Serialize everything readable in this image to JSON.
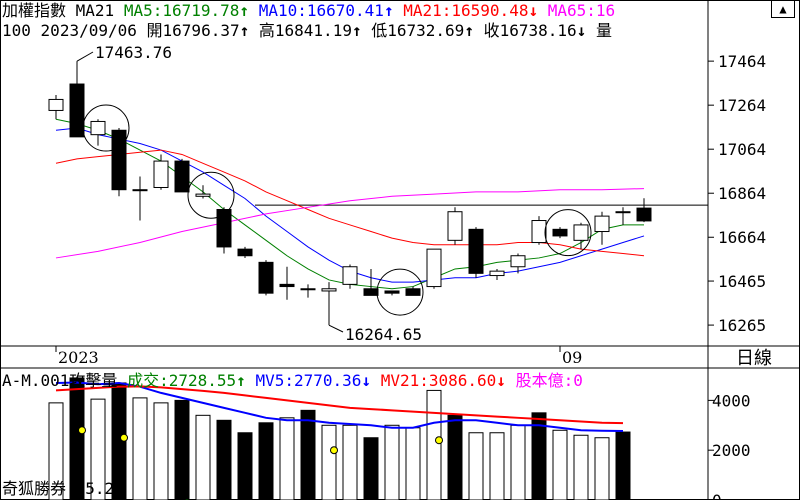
{
  "app": {
    "name": "奇狐勝券 v5.2",
    "period_button": "日線"
  },
  "header": {
    "index_name": "加權指數",
    "ma_label": "MA21",
    "ma5": {
      "label": "MA5:",
      "value": "16719.78",
      "arrow": "↑"
    },
    "ma10": {
      "label": "MA10:",
      "value": "16670.41",
      "arrow": "↑"
    },
    "ma21": {
      "label": "MA21:",
      "value": "16590.48",
      "arrow": "↓"
    },
    "ma65": {
      "label": "MA65:",
      "value": "16"
    },
    "scroll_icon": "up-arrow-icon",
    "info_prefix": "100",
    "date": "2023/09/06",
    "open": {
      "label": "開",
      "value": "16796.37",
      "arrow": "↑"
    },
    "high": {
      "label": "高",
      "value": "16841.19",
      "arrow": "↑"
    },
    "low": {
      "label": "低",
      "value": "16732.69",
      "arrow": "↑"
    },
    "close": {
      "label": "收",
      "value": "16738.16",
      "arrow": "↓"
    },
    "volume_label": "量"
  },
  "volume_header": {
    "prefix": "A-M.001攻擊量",
    "vol": {
      "label": "成交:",
      "value": "2728.55",
      "arrow": "↑"
    },
    "mv5": {
      "label": "MV5:",
      "value": "2770.36",
      "arrow": "↓"
    },
    "mv21": {
      "label": "MV21:",
      "value": "3086.60",
      "arrow": "↓"
    },
    "shares": {
      "label": "股本億:",
      "value": "0"
    }
  },
  "colors": {
    "ma5": "#008000",
    "ma10": "#0000ff",
    "ma21": "#ff0000",
    "ma65": "#ff00ff",
    "up": "#ffffff",
    "down": "#000000"
  },
  "chart_data": [
    {
      "type": "candlestick",
      "ylim": [
        16170,
        17560
      ],
      "yticks": [
        "17464",
        "17264",
        "17064",
        "16864",
        "16664",
        "16465",
        "16265"
      ],
      "xlabels": [
        {
          "index": 0,
          "label": "2023"
        },
        {
          "index": 24,
          "label": "09"
        }
      ],
      "annotations": [
        {
          "index": 1,
          "label": "17463.76"
        },
        {
          "index": 13,
          "label": "16264.65"
        }
      ],
      "reference_line": 16810,
      "circles": [
        2,
        7,
        16,
        24
      ],
      "candles": [
        {
          "o": 17240,
          "h": 17310,
          "l": 17200,
          "c": 17290
        },
        {
          "o": 17360,
          "h": 17463.76,
          "l": 17120,
          "c": 17120
        },
        {
          "o": 17130,
          "h": 17200,
          "l": 17080,
          "c": 17190
        },
        {
          "o": 17150,
          "h": 17160,
          "l": 16850,
          "c": 16880
        },
        {
          "o": 16880,
          "h": 16940,
          "l": 16740,
          "c": 16880
        },
        {
          "o": 16890,
          "h": 17040,
          "l": 16880,
          "c": 17010
        },
        {
          "o": 17010,
          "h": 17020,
          "l": 16870,
          "c": 16870
        },
        {
          "o": 16850,
          "h": 16900,
          "l": 16840,
          "c": 16860
        },
        {
          "o": 16790,
          "h": 16800,
          "l": 16590,
          "c": 16620
        },
        {
          "o": 16610,
          "h": 16620,
          "l": 16570,
          "c": 16580
        },
        {
          "o": 16550,
          "h": 16560,
          "l": 16400,
          "c": 16410
        },
        {
          "o": 16450,
          "h": 16530,
          "l": 16380,
          "c": 16440
        },
        {
          "o": 16430,
          "h": 16450,
          "l": 16390,
          "c": 16430
        },
        {
          "o": 16420,
          "h": 16460,
          "l": 16264.65,
          "c": 16430
        },
        {
          "o": 16450,
          "h": 16540,
          "l": 16430,
          "c": 16530
        },
        {
          "o": 16430,
          "h": 16520,
          "l": 16400,
          "c": 16400
        },
        {
          "o": 16420,
          "h": 16420,
          "l": 16400,
          "c": 16410
        },
        {
          "o": 16430,
          "h": 16440,
          "l": 16400,
          "c": 16400
        },
        {
          "o": 16440,
          "h": 16610,
          "l": 16430,
          "c": 16610
        },
        {
          "o": 16650,
          "h": 16800,
          "l": 16630,
          "c": 16780
        },
        {
          "o": 16700,
          "h": 16710,
          "l": 16480,
          "c": 16500
        },
        {
          "o": 16490,
          "h": 16520,
          "l": 16470,
          "c": 16510
        },
        {
          "o": 16530,
          "h": 16590,
          "l": 16500,
          "c": 16580
        },
        {
          "o": 16640,
          "h": 16760,
          "l": 16630,
          "c": 16740
        },
        {
          "o": 16700,
          "h": 16710,
          "l": 16660,
          "c": 16670
        },
        {
          "o": 16650,
          "h": 16730,
          "l": 16610,
          "c": 16720
        },
        {
          "o": 16690,
          "h": 16780,
          "l": 16630,
          "c": 16760
        },
        {
          "o": 16780,
          "h": 16800,
          "l": 16720,
          "c": 16780
        },
        {
          "o": 16796.37,
          "h": 16841.19,
          "l": 16732.69,
          "c": 16738.16
        }
      ],
      "series": [
        {
          "name": "MA5",
          "color": "#008000",
          "points": [
            [
              0,
              17200
            ],
            [
              1,
              17180
            ],
            [
              2,
              17150
            ],
            [
              3,
              17110
            ],
            [
              4,
              17060
            ],
            [
              5,
              17010
            ],
            [
              6,
              16940
            ],
            [
              7,
              16870
            ],
            [
              8,
              16790
            ],
            [
              9,
              16720
            ],
            [
              10,
              16650
            ],
            [
              11,
              16580
            ],
            [
              12,
              16520
            ],
            [
              13,
              16470
            ],
            [
              14,
              16450
            ],
            [
              15,
              16440
            ],
            [
              16,
              16430
            ],
            [
              17,
              16440
            ],
            [
              18,
              16480
            ],
            [
              19,
              16520
            ],
            [
              20,
              16530
            ],
            [
              21,
              16550
            ],
            [
              22,
              16560
            ],
            [
              23,
              16570
            ],
            [
              24,
              16590
            ],
            [
              25,
              16640
            ],
            [
              26,
              16700
            ],
            [
              27,
              16720
            ],
            [
              28,
              16720
            ]
          ]
        },
        {
          "name": "MA10",
          "color": "#0000ff",
          "points": [
            [
              0,
              17150
            ],
            [
              1,
              17160
            ],
            [
              2,
              17130
            ],
            [
              3,
              17110
            ],
            [
              4,
              17090
            ],
            [
              5,
              17060
            ],
            [
              6,
              17010
            ],
            [
              7,
              16960
            ],
            [
              8,
              16900
            ],
            [
              9,
              16840
            ],
            [
              10,
              16760
            ],
            [
              11,
              16690
            ],
            [
              12,
              16620
            ],
            [
              13,
              16560
            ],
            [
              14,
              16510
            ],
            [
              15,
              16480
            ],
            [
              16,
              16460
            ],
            [
              17,
              16460
            ],
            [
              18,
              16470
            ],
            [
              19,
              16480
            ],
            [
              20,
              16480
            ],
            [
              21,
              16500
            ],
            [
              22,
              16510
            ],
            [
              23,
              16530
            ],
            [
              24,
              16550
            ],
            [
              25,
              16580
            ],
            [
              26,
              16610
            ],
            [
              27,
              16640
            ],
            [
              28,
              16670
            ]
          ]
        },
        {
          "name": "MA21",
          "color": "#ff0000",
          "points": [
            [
              0,
              17000
            ],
            [
              1,
              17020
            ],
            [
              2,
              17030
            ],
            [
              3,
              17040
            ],
            [
              4,
              17050
            ],
            [
              5,
              17060
            ],
            [
              6,
              17040
            ],
            [
              7,
              17000
            ],
            [
              8,
              16960
            ],
            [
              9,
              16920
            ],
            [
              10,
              16870
            ],
            [
              11,
              16830
            ],
            [
              12,
              16790
            ],
            [
              13,
              16750
            ],
            [
              14,
              16720
            ],
            [
              15,
              16690
            ],
            [
              16,
              16660
            ],
            [
              17,
              16640
            ],
            [
              18,
              16630
            ],
            [
              19,
              16630
            ],
            [
              20,
              16630
            ],
            [
              21,
              16630
            ],
            [
              22,
              16640
            ],
            [
              23,
              16640
            ],
            [
              24,
              16630
            ],
            [
              25,
              16610
            ],
            [
              26,
              16600
            ],
            [
              27,
              16590
            ],
            [
              28,
              16580
            ]
          ]
        },
        {
          "name": "MA65",
          "color": "#ff00ff",
          "points": [
            [
              0,
              16570
            ],
            [
              2,
              16600
            ],
            [
              4,
              16640
            ],
            [
              6,
              16690
            ],
            [
              8,
              16730
            ],
            [
              10,
              16770
            ],
            [
              12,
              16800
            ],
            [
              14,
              16830
            ],
            [
              16,
              16850
            ],
            [
              18,
              16860
            ],
            [
              20,
              16870
            ],
            [
              22,
              16870
            ],
            [
              24,
              16880
            ],
            [
              26,
              16880
            ],
            [
              28,
              16885
            ]
          ]
        }
      ]
    },
    {
      "type": "bar",
      "ylim": [
        0,
        5300
      ],
      "yticks": [
        "4000",
        "2000",
        "0"
      ],
      "bars": [
        {
          "v": 3900,
          "up": true
        },
        {
          "v": 4900,
          "up": false
        },
        {
          "v": 4050,
          "up": true
        },
        {
          "v": 4700,
          "up": false
        },
        {
          "v": 4100,
          "up": true
        },
        {
          "v": 3900,
          "up": true
        },
        {
          "v": 4000,
          "up": false
        },
        {
          "v": 3400,
          "up": true
        },
        {
          "v": 3200,
          "up": false
        },
        {
          "v": 2700,
          "up": false
        },
        {
          "v": 3100,
          "up": false
        },
        {
          "v": 3300,
          "up": true
        },
        {
          "v": 3600,
          "up": false
        },
        {
          "v": 3000,
          "up": true
        },
        {
          "v": 3000,
          "up": true
        },
        {
          "v": 2500,
          "up": false
        },
        {
          "v": 3000,
          "up": true
        },
        {
          "v": 2900,
          "up": true
        },
        {
          "v": 4400,
          "up": true
        },
        {
          "v": 3400,
          "up": false
        },
        {
          "v": 2700,
          "up": true
        },
        {
          "v": 2700,
          "up": true
        },
        {
          "v": 3000,
          "up": true
        },
        {
          "v": 3500,
          "up": false
        },
        {
          "v": 2800,
          "up": true
        },
        {
          "v": 2600,
          "up": true
        },
        {
          "v": 2500,
          "up": true
        },
        {
          "v": 2728.55,
          "up": false
        }
      ],
      "dots": [
        {
          "index": 1,
          "v": 2800,
          "color": "#ffff00"
        },
        {
          "index": 3,
          "v": 2500,
          "color": "#ffff00"
        },
        {
          "index": 6,
          "v": -100,
          "color": "#008000"
        },
        {
          "index": 13,
          "v": 2000,
          "color": "#ffff00"
        },
        {
          "index": 18,
          "v": 2400,
          "color": "#ffff00"
        }
      ],
      "series": [
        {
          "name": "MV5",
          "color": "#0000ff",
          "points": [
            [
              0,
              4700
            ],
            [
              1,
              4720
            ],
            [
              2,
              4650
            ],
            [
              3,
              4700
            ],
            [
              4,
              4550
            ],
            [
              5,
              4300
            ],
            [
              6,
              4100
            ],
            [
              7,
              3900
            ],
            [
              8,
              3700
            ],
            [
              9,
              3500
            ],
            [
              10,
              3300
            ],
            [
              11,
              3200
            ],
            [
              12,
              3200
            ],
            [
              13,
              3100
            ],
            [
              14,
              3050
            ],
            [
              15,
              3000
            ],
            [
              16,
              2900
            ],
            [
              17,
              2900
            ],
            [
              18,
              3100
            ],
            [
              19,
              3200
            ],
            [
              20,
              3200
            ],
            [
              21,
              3100
            ],
            [
              22,
              3000
            ],
            [
              23,
              3000
            ],
            [
              24,
              2900
            ],
            [
              25,
              2800
            ],
            [
              26,
              2780
            ],
            [
              27,
              2770
            ]
          ]
        },
        {
          "name": "MV21",
          "color": "#ff0000",
          "points": [
            [
              0,
              4400
            ],
            [
              1,
              4450
            ],
            [
              2,
              4500
            ],
            [
              3,
              4550
            ],
            [
              4,
              4560
            ],
            [
              5,
              4520
            ],
            [
              6,
              4450
            ],
            [
              7,
              4380
            ],
            [
              8,
              4300
            ],
            [
              9,
              4200
            ],
            [
              10,
              4100
            ],
            [
              11,
              4000
            ],
            [
              12,
              3900
            ],
            [
              13,
              3800
            ],
            [
              14,
              3700
            ],
            [
              15,
              3650
            ],
            [
              16,
              3600
            ],
            [
              17,
              3550
            ],
            [
              18,
              3500
            ],
            [
              19,
              3450
            ],
            [
              20,
              3400
            ],
            [
              21,
              3350
            ],
            [
              22,
              3300
            ],
            [
              23,
              3250
            ],
            [
              24,
              3200
            ],
            [
              25,
              3150
            ],
            [
              26,
              3100
            ],
            [
              27,
              3086.6
            ]
          ]
        }
      ]
    }
  ]
}
